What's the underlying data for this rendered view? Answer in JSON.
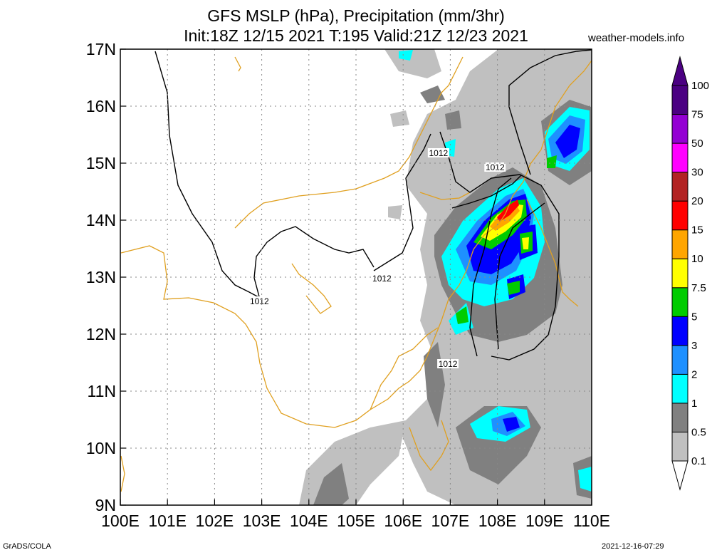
{
  "title_line1": "GFS MSLP (hPa), Precipitation (mm/3hr)",
  "title_line2": "Init:18Z 12/15 2021 T:195 Valid:21Z 12/23 2021",
  "site": "weather-models.info",
  "footer_left": "GrADS/COLA",
  "footer_right": "2021-12-16-07:29",
  "map": {
    "lon_range": [
      100,
      110
    ],
    "lat_range": [
      9,
      17
    ],
    "lon_labels": [
      "100E",
      "101E",
      "102E",
      "103E",
      "104E",
      "105E",
      "106E",
      "107E",
      "108E",
      "109E",
      "110E"
    ],
    "lat_labels": [
      "9N",
      "10N",
      "11N",
      "12N",
      "13N",
      "14N",
      "15N",
      "16N",
      "17N"
    ],
    "grid": "dotted",
    "isobar_labels": [
      {
        "text": "1012",
        "lon": 102.95,
        "lat": 12.55
      },
      {
        "text": "1012",
        "lon": 105.55,
        "lat": 12.95
      },
      {
        "text": "1012",
        "lon": 106.75,
        "lat": 15.15
      },
      {
        "text": "1012",
        "lon": 107.95,
        "lat": 14.9
      },
      {
        "text": "1012",
        "lon": 106.95,
        "lat": 11.45
      }
    ]
  },
  "legend": {
    "levels": [
      "0.1",
      "0.5",
      "1",
      "2",
      "3",
      "5",
      "7.5",
      "10",
      "15",
      "20",
      "30",
      "50",
      "75",
      "100"
    ],
    "colors": [
      "#ffffff",
      "#c0c0c0",
      "#808080",
      "#00ffff",
      "#1e90ff",
      "#0000ff",
      "#00cc00",
      "#ffff00",
      "#ffa500",
      "#ff0000",
      "#b22222",
      "#ff00ff",
      "#9400d3",
      "#4b0082"
    ]
  }
}
